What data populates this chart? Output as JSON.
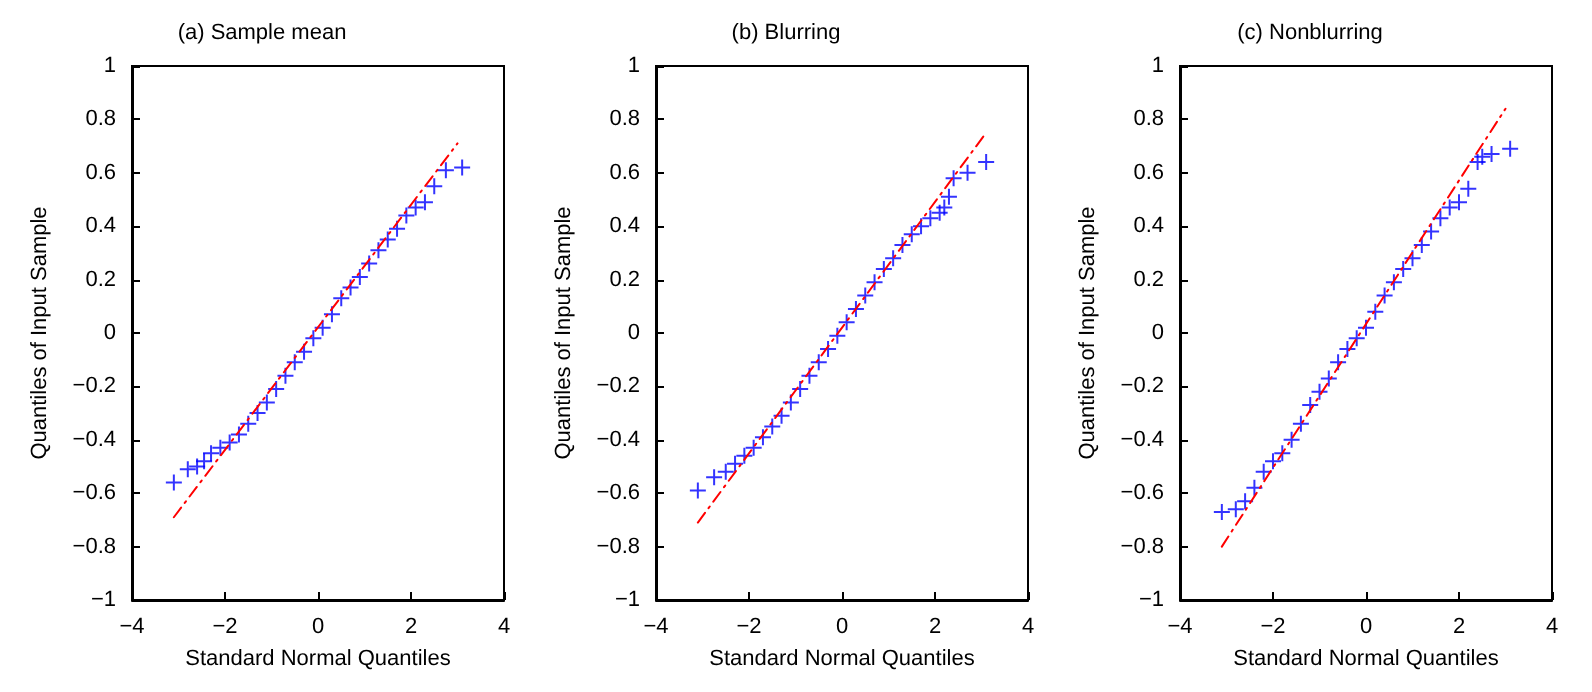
{
  "chart_data": [
    {
      "type": "scatter",
      "title": "(a) Sample mean",
      "xlabel": "Standard Normal Quantiles",
      "ylabel": "Quantiles of Input Sample",
      "xlim": [
        -4,
        4
      ],
      "xticks": [
        -4,
        -2,
        0,
        2,
        4
      ],
      "ylim": [
        -1,
        1
      ],
      "yticks": [
        -1,
        -0.8,
        -0.6,
        -0.4,
        -0.2,
        0,
        0.2,
        0.4,
        0.6,
        0.8,
        1
      ],
      "grid": false,
      "series": [
        {
          "color": "#0000ff",
          "marker": "cross",
          "x": [
            -3.1,
            -2.8,
            -2.6,
            -2.45,
            -2.3,
            -2.1,
            -1.9,
            -1.7,
            -1.5,
            -1.3,
            -1.1,
            -0.9,
            -0.7,
            -0.5,
            -0.3,
            -0.1,
            0.1,
            0.3,
            0.5,
            0.7,
            0.9,
            1.1,
            1.3,
            1.5,
            1.7,
            1.9,
            2.1,
            2.3,
            2.5,
            2.75,
            3.1
          ],
          "values": [
            -0.56,
            -0.51,
            -0.5,
            -0.48,
            -0.45,
            -0.43,
            -0.41,
            -0.38,
            -0.34,
            -0.3,
            -0.26,
            -0.21,
            -0.16,
            -0.11,
            -0.07,
            -0.02,
            0.02,
            0.07,
            0.13,
            0.17,
            0.21,
            0.26,
            0.31,
            0.35,
            0.39,
            0.44,
            0.47,
            0.49,
            0.55,
            0.61,
            0.62
          ]
        },
        {
          "type": "line",
          "color": "#ff0000",
          "marker": "none",
          "line_style": "dashed",
          "x": [
            -3.1,
            3.0
          ],
          "values": [
            -0.69,
            0.71
          ]
        }
      ]
    },
    {
      "type": "scatter",
      "title": "(b) Blurring",
      "xlabel": "Standard Normal Quantiles",
      "ylabel": "Quantiles of Input Sample",
      "xlim": [
        -4,
        4
      ],
      "xticks": [
        -4,
        -2,
        0,
        2,
        4
      ],
      "ylim": [
        -1,
        1
      ],
      "yticks": [
        -1,
        -0.8,
        -0.6,
        -0.4,
        -0.2,
        0,
        0.2,
        0.4,
        0.6,
        0.8,
        1
      ],
      "grid": false,
      "series": [
        {
          "color": "#0000ff",
          "marker": "cross",
          "x": [
            -3.1,
            -2.75,
            -2.5,
            -2.3,
            -2.1,
            -1.9,
            -1.7,
            -1.5,
            -1.3,
            -1.1,
            -0.9,
            -0.7,
            -0.5,
            -0.3,
            -0.1,
            0.1,
            0.3,
            0.5,
            0.7,
            0.9,
            1.1,
            1.3,
            1.5,
            1.7,
            1.9,
            2.1,
            2.2,
            2.3,
            2.4,
            2.7,
            3.1
          ],
          "values": [
            -0.59,
            -0.54,
            -0.52,
            -0.49,
            -0.46,
            -0.43,
            -0.39,
            -0.35,
            -0.31,
            -0.26,
            -0.21,
            -0.16,
            -0.11,
            -0.06,
            -0.01,
            0.04,
            0.09,
            0.14,
            0.19,
            0.24,
            0.28,
            0.33,
            0.37,
            0.4,
            0.43,
            0.45,
            0.47,
            0.51,
            0.58,
            0.6,
            0.64
          ]
        },
        {
          "type": "line",
          "color": "#ff0000",
          "marker": "none",
          "line_style": "dashed",
          "x": [
            -3.1,
            3.1
          ],
          "values": [
            -0.71,
            0.75
          ]
        }
      ]
    },
    {
      "type": "scatter",
      "title": "(c) Nonblurring",
      "xlabel": "Standard Normal Quantiles",
      "ylabel": "Quantiles of Input Sample",
      "xlim": [
        -4,
        4
      ],
      "xticks": [
        -4,
        -2,
        0,
        2,
        4
      ],
      "ylim": [
        -1,
        1
      ],
      "yticks": [
        -1,
        -0.8,
        -0.6,
        -0.4,
        -0.2,
        0,
        0.2,
        0.4,
        0.6,
        0.8,
        1
      ],
      "grid": false,
      "series": [
        {
          "color": "#0000ff",
          "marker": "cross",
          "x": [
            -3.1,
            -2.8,
            -2.6,
            -2.4,
            -2.2,
            -2.0,
            -1.8,
            -1.6,
            -1.4,
            -1.2,
            -1.0,
            -0.8,
            -0.6,
            -0.4,
            -0.2,
            0,
            0.2,
            0.4,
            0.6,
            0.8,
            1.0,
            1.2,
            1.4,
            1.6,
            1.8,
            2.0,
            2.2,
            2.4,
            2.5,
            2.7,
            3.1
          ],
          "values": [
            -0.67,
            -0.66,
            -0.63,
            -0.58,
            -0.52,
            -0.48,
            -0.45,
            -0.4,
            -0.34,
            -0.27,
            -0.22,
            -0.17,
            -0.11,
            -0.06,
            -0.02,
            0.02,
            0.08,
            0.14,
            0.19,
            0.24,
            0.28,
            0.33,
            0.38,
            0.43,
            0.47,
            0.49,
            0.54,
            0.64,
            0.66,
            0.67,
            0.69
          ]
        },
        {
          "type": "line",
          "color": "#ff0000",
          "marker": "none",
          "line_style": "dashed",
          "x": [
            -3.1,
            3.0
          ],
          "values": [
            -0.8,
            0.84
          ]
        }
      ]
    }
  ]
}
